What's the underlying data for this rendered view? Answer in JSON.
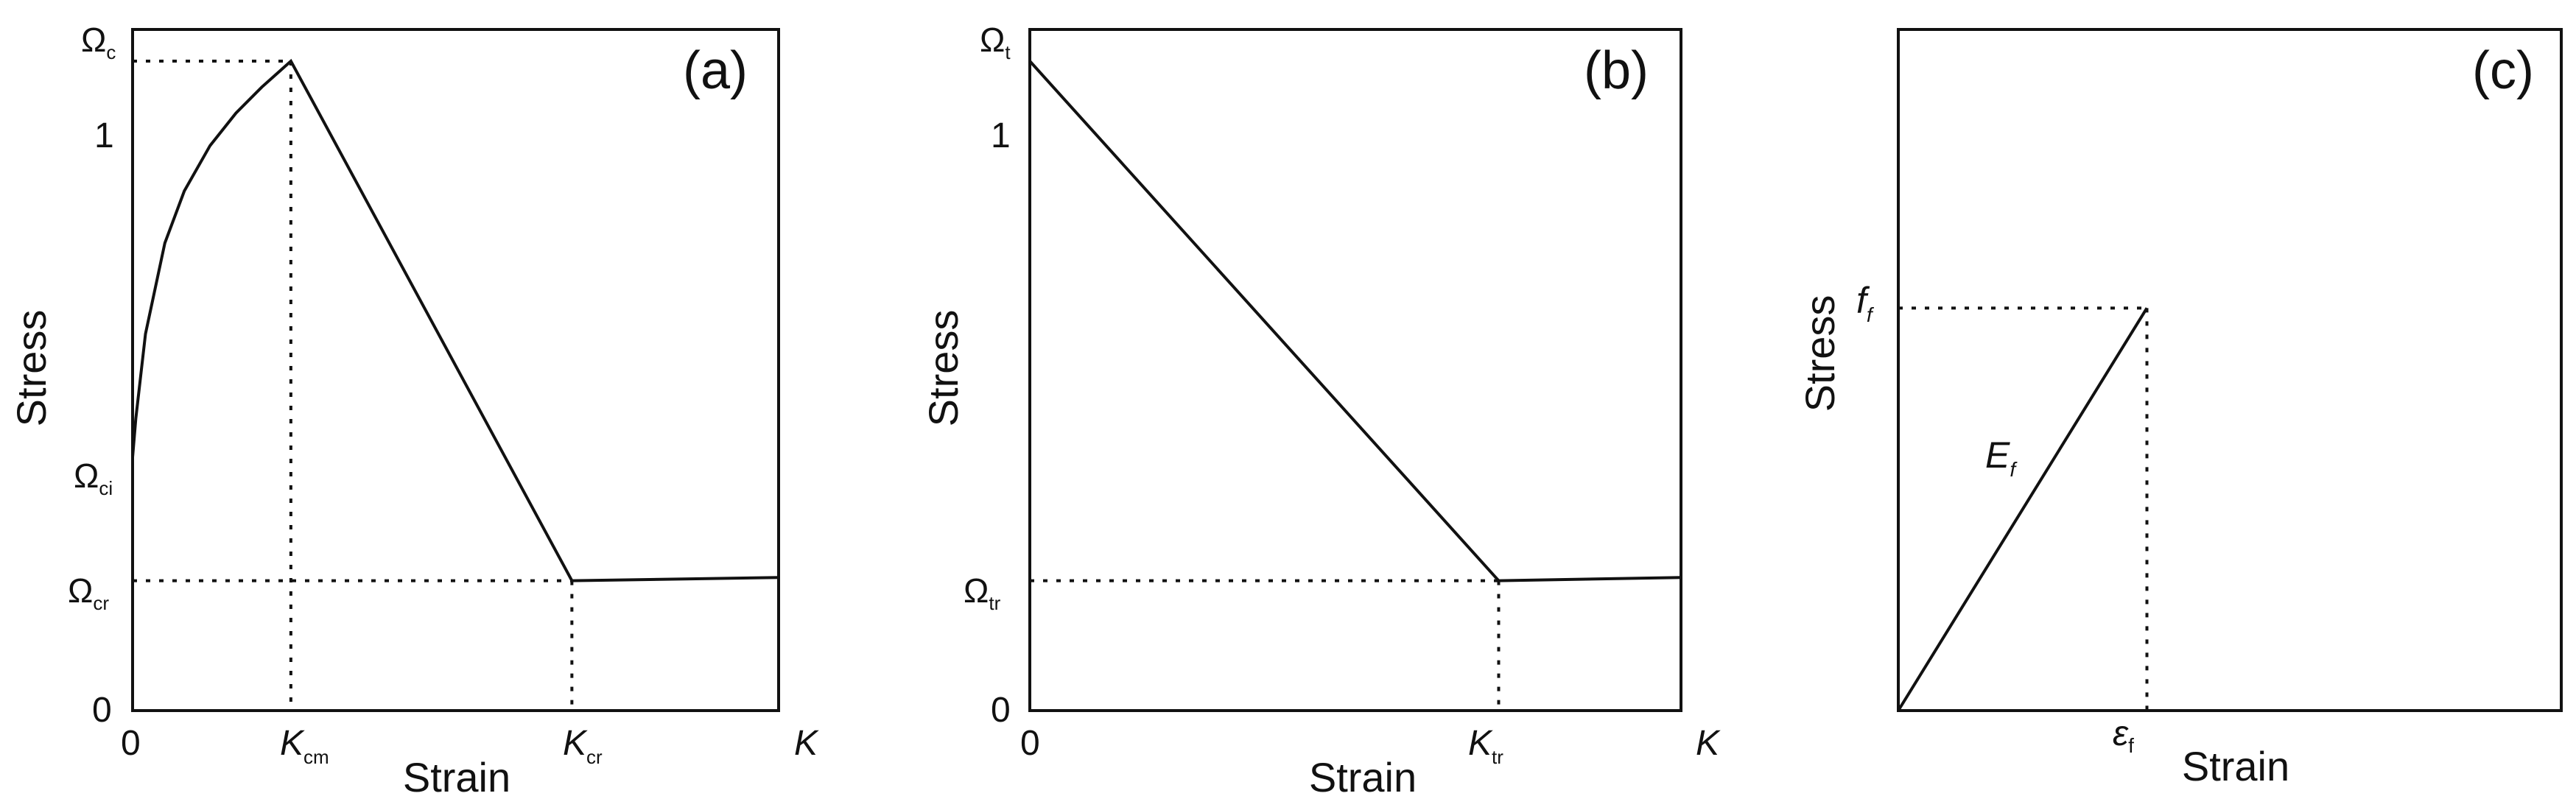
{
  "chart_data": [
    {
      "type": "line",
      "panel_label": "(a)",
      "xlabel": "Strain",
      "ylabel": "Stress",
      "x_ticks": {
        "origin": "0",
        "K_cm": "K",
        "K_cm_sub": "cm",
        "K_cr": "K",
        "K_cr_sub": "cr",
        "end": "K"
      },
      "y_ticks": {
        "zero": "0",
        "one": "1",
        "top": "Ω",
        "top_sub": "c",
        "ci": "Ω",
        "ci_sub": "ci",
        "cr": "Ω",
        "cr_sub": "cr"
      },
      "xlim": [
        0,
        1.0
      ],
      "ylim": [
        0,
        1.0
      ],
      "series": [
        {
          "x": [
            0,
            0.005,
            0.02,
            0.05,
            0.08,
            0.12,
            0.16,
            0.2,
            0.245,
            0.68,
            1.0
          ],
          "y": [
            0.39,
            0.45,
            0.58,
            0.72,
            0.8,
            0.87,
            0.92,
            0.96,
            1.0,
            0.2,
            0.205
          ]
        }
      ],
      "reference_points": [
        {
          "x": 0.245,
          "y": 1.0,
          "label": "K_cm"
        },
        {
          "x": 0.68,
          "y": 0.2,
          "label": "K_cr"
        }
      ]
    },
    {
      "type": "line",
      "panel_label": "(b)",
      "xlabel": "Strain",
      "ylabel": "Stress",
      "x_ticks": {
        "origin": "0",
        "K_tr": "K",
        "K_tr_sub": "tr",
        "end": "K"
      },
      "y_ticks": {
        "zero": "0",
        "one": "1",
        "top": "Ω",
        "top_sub": "t",
        "tr": "Ω",
        "tr_sub": "tr"
      },
      "xlim": [
        0,
        1.0
      ],
      "ylim": [
        0,
        1.0
      ],
      "series": [
        {
          "x": [
            0,
            0.72,
            1.0
          ],
          "y": [
            1.0,
            0.2,
            0.205
          ]
        }
      ],
      "reference_points": [
        {
          "x": 0.72,
          "y": 0.2,
          "label": "K_tr"
        }
      ]
    },
    {
      "type": "line",
      "panel_label": "(c)",
      "xlabel": "Strain",
      "ylabel": "Stress",
      "x_ticks": {
        "eps": "ε",
        "eps_sub": "f"
      },
      "y_ticks": {
        "ff": "f",
        "ff_sub": "f"
      },
      "slope_label": {
        "text": "E",
        "sub": "f"
      },
      "xlim": [
        0,
        1.0
      ],
      "ylim": [
        0,
        1.0
      ],
      "series": [
        {
          "x": [
            0,
            0.375
          ],
          "y": [
            0,
            0.591
          ]
        }
      ],
      "reference_points": [
        {
          "x": 0.375,
          "y": 0.591,
          "label": "f_f / ε_f"
        }
      ]
    }
  ]
}
